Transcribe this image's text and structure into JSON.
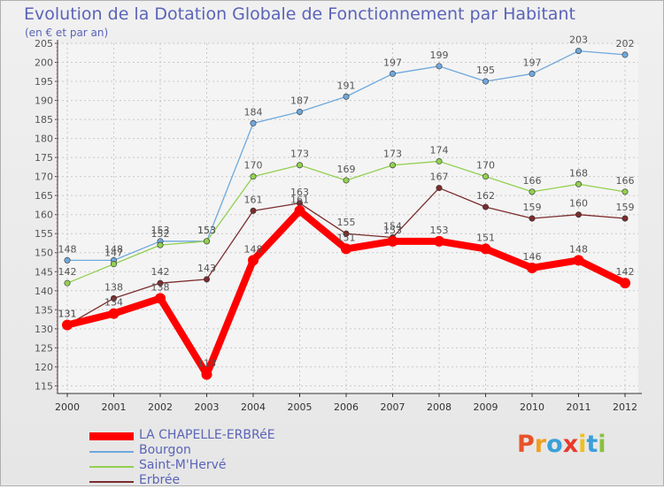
{
  "title": "Evolution de la Dotation Globale de Fonctionnement par Habitant",
  "subtitle": "(en € et par an)",
  "logo": {
    "letters": [
      "P",
      "r",
      "o",
      "x",
      "i",
      "t",
      "i"
    ],
    "colors": [
      "#e8522a",
      "#f0a020",
      "#3aa0d8",
      "#e83a2a",
      "#f0c020",
      "#3aa0d8",
      "#8ac040"
    ]
  },
  "chart_data": {
    "type": "line",
    "title": "Evolution de la Dotation Globale de Fonctionnement par Habitant",
    "subtitle": "(en € et par an)",
    "xlabel": "",
    "ylabel": "",
    "x": [
      "2000",
      "2001",
      "2002",
      "2003",
      "2004",
      "2005",
      "2006",
      "2007",
      "2008",
      "2009",
      "2010",
      "2011",
      "2012"
    ],
    "ylim": [
      113,
      205
    ],
    "yticks": [
      115,
      120,
      125,
      130,
      135,
      140,
      145,
      150,
      155,
      160,
      165,
      170,
      175,
      180,
      185,
      190,
      195,
      200,
      205
    ],
    "grid": true,
    "legend": "bottom-left",
    "series": [
      {
        "name": "LA CHAPELLE-ERBRéE",
        "color": "#ff0000",
        "thick": true,
        "values": [
          131,
          134,
          138,
          118,
          148,
          161,
          151,
          153,
          153,
          151,
          146,
          148,
          142
        ]
      },
      {
        "name": "Bourgon",
        "color": "#6fa8dc",
        "thick": false,
        "values": [
          148,
          148,
          153,
          153,
          184,
          187,
          191,
          197,
          199,
          195,
          197,
          203,
          202
        ]
      },
      {
        "name": "Saint-M'Hervé",
        "color": "#92d050",
        "thick": false,
        "values": [
          142,
          147,
          152,
          153,
          170,
          173,
          169,
          173,
          174,
          170,
          166,
          168,
          166
        ]
      },
      {
        "name": "Erbrée",
        "color": "#7b2c2c",
        "thick": false,
        "values": [
          131,
          138,
          142,
          143,
          161,
          163,
          155,
          154,
          167,
          162,
          159,
          160,
          159
        ]
      }
    ]
  }
}
